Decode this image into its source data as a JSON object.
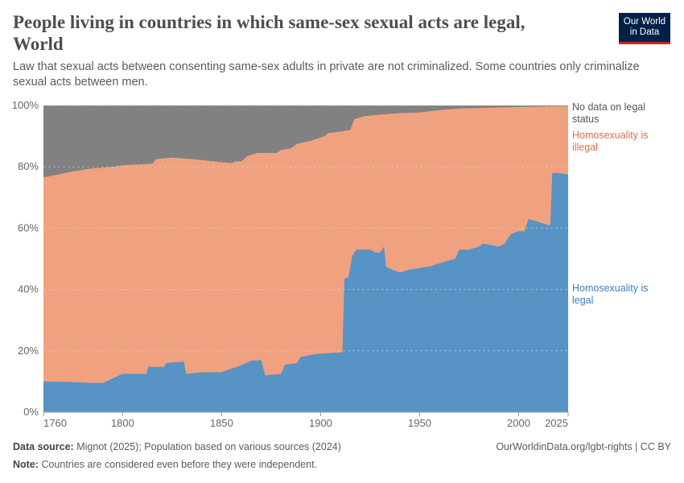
{
  "title": "People living in countries in which same-sex sexual acts are legal, World",
  "subtitle": "Law that sexual acts between consenting same-sex adults in private are not criminalized. Some countries only criminalize sexual acts between men.",
  "logo": {
    "line1": "Our World",
    "line2": "in Data",
    "bg": "#002147",
    "accent": "#ce261e"
  },
  "footer": {
    "source_label": "Data source:",
    "source_text": "Mignot (2025); Population based on various sources (2024)",
    "url": "OurWorldinData.org/lgbt-rights | CC BY",
    "note_label": "Note:",
    "note_text": "Countries are considered even before they were independent."
  },
  "chart_data": {
    "type": "area",
    "stacked": true,
    "xlim": [
      1760,
      2025
    ],
    "ylim": [
      0,
      100
    ],
    "x_ticks": [
      "1760",
      "1800",
      "1850",
      "1900",
      "1950",
      "2000",
      "2025"
    ],
    "x_tick_values": [
      1760,
      1800,
      1850,
      1900,
      1950,
      2000,
      2025
    ],
    "y_ticks": [
      "0%",
      "20%",
      "40%",
      "60%",
      "80%",
      "100%"
    ],
    "y_tick_values": [
      0,
      20,
      40,
      60,
      80,
      100
    ],
    "grid": "horizontal dashed",
    "legend": "right, inline labels",
    "series": [
      {
        "name": "Homosexuality is legal",
        "color": "#5793c4",
        "label_color": "#3c7fbd",
        "points": [
          [
            1760,
            10
          ],
          [
            1775,
            9.8
          ],
          [
            1785,
            9.5
          ],
          [
            1790,
            9.5
          ],
          [
            1800,
            12.5
          ],
          [
            1812,
            12.5
          ],
          [
            1813,
            14.8
          ],
          [
            1821,
            14.8
          ],
          [
            1822,
            16
          ],
          [
            1831,
            16.5
          ],
          [
            1832,
            12.5
          ],
          [
            1840,
            13
          ],
          [
            1850,
            13
          ],
          [
            1853,
            13.8
          ],
          [
            1858,
            14.8
          ],
          [
            1865,
            16.8
          ],
          [
            1870,
            17
          ],
          [
            1872,
            12
          ],
          [
            1880,
            12.5
          ],
          [
            1882,
            15.5
          ],
          [
            1888,
            16
          ],
          [
            1890,
            18
          ],
          [
            1898,
            19
          ],
          [
            1905,
            19.3
          ],
          [
            1911,
            19.5
          ],
          [
            1912,
            43.5
          ],
          [
            1914,
            44
          ],
          [
            1916,
            51
          ],
          [
            1918,
            53
          ],
          [
            1925,
            53
          ],
          [
            1928,
            52
          ],
          [
            1930,
            52
          ],
          [
            1932,
            54
          ],
          [
            1933,
            47.5
          ],
          [
            1936,
            46.5
          ],
          [
            1940,
            45.5
          ],
          [
            1945,
            46.5
          ],
          [
            1950,
            47
          ],
          [
            1955,
            47.5
          ],
          [
            1960,
            48.5
          ],
          [
            1965,
            49.5
          ],
          [
            1968,
            50
          ],
          [
            1970,
            53
          ],
          [
            1975,
            53
          ],
          [
            1980,
            54
          ],
          [
            1982,
            55
          ],
          [
            1990,
            54
          ],
          [
            1993,
            55
          ],
          [
            1996,
            58
          ],
          [
            2000,
            59
          ],
          [
            2003,
            59
          ],
          [
            2005,
            63
          ],
          [
            2010,
            62
          ],
          [
            2015,
            61
          ],
          [
            2016,
            61
          ],
          [
            2017,
            78
          ],
          [
            2020,
            78
          ],
          [
            2025,
            77.5
          ]
        ]
      },
      {
        "name": "Homosexuality is illegal",
        "color": "#f0a17f",
        "label_color": "#e06c4a",
        "points": [
          [
            1760,
            66.5
          ],
          [
            1800,
            68
          ],
          [
            1850,
            68.5
          ],
          [
            1900,
            71
          ],
          [
            1911,
            72
          ],
          [
            1912,
            48
          ],
          [
            1950,
            50.7
          ],
          [
            2000,
            40.5
          ],
          [
            2016,
            38.5
          ],
          [
            2017,
            21.8
          ],
          [
            2025,
            22.3
          ]
        ]
      },
      {
        "name": "No data on legal status",
        "color": "#818181",
        "label_color": "#555555",
        "points": [
          [
            1760,
            23.5
          ],
          [
            1775,
            21.5
          ],
          [
            1785,
            20.5
          ],
          [
            1795,
            20
          ],
          [
            1800,
            19.5
          ],
          [
            1815,
            19
          ],
          [
            1817,
            17.5
          ],
          [
            1825,
            17
          ],
          [
            1835,
            17.5
          ],
          [
            1850,
            18.5
          ],
          [
            1855,
            18.8
          ],
          [
            1857,
            18.2
          ],
          [
            1860,
            18.2
          ],
          [
            1863,
            16.5
          ],
          [
            1868,
            15.5
          ],
          [
            1878,
            15.5
          ],
          [
            1880,
            14.5
          ],
          [
            1885,
            14
          ],
          [
            1888,
            12.5
          ],
          [
            1895,
            11.5
          ],
          [
            1902,
            10
          ],
          [
            1904,
            9
          ],
          [
            1910,
            8.5
          ],
          [
            1915,
            8
          ],
          [
            1917,
            4.5
          ],
          [
            1922,
            3.5
          ],
          [
            1930,
            3
          ],
          [
            1940,
            2.5
          ],
          [
            1950,
            2.3
          ],
          [
            1960,
            1.5
          ],
          [
            1970,
            1
          ],
          [
            2000,
            0.5
          ],
          [
            2025,
            0.2
          ]
        ]
      }
    ]
  }
}
